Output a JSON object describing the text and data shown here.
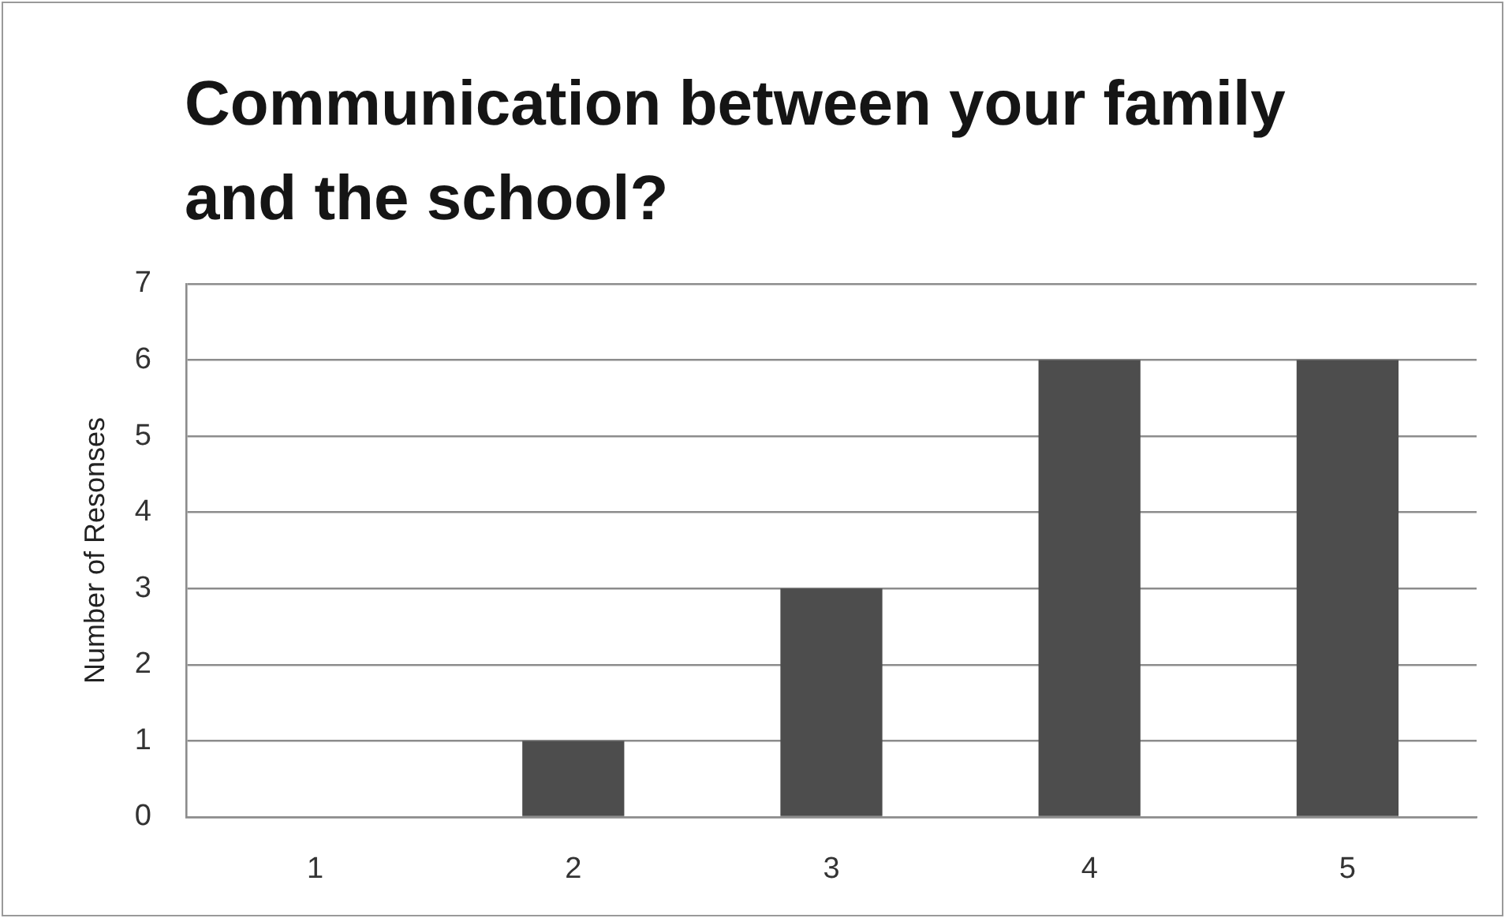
{
  "chart_data": {
    "type": "bar",
    "title": "Communication between your family and the school?",
    "ylabel": "Number of Resonses",
    "categories": [
      "1",
      "2",
      "3",
      "4",
      "5"
    ],
    "values": [
      0,
      1,
      3,
      6,
      6
    ],
    "color": "#4d4d4d",
    "ylim": [
      0,
      7
    ],
    "yticks": [
      0,
      1,
      2,
      3,
      4,
      5,
      6,
      7
    ],
    "grid": "y"
  }
}
